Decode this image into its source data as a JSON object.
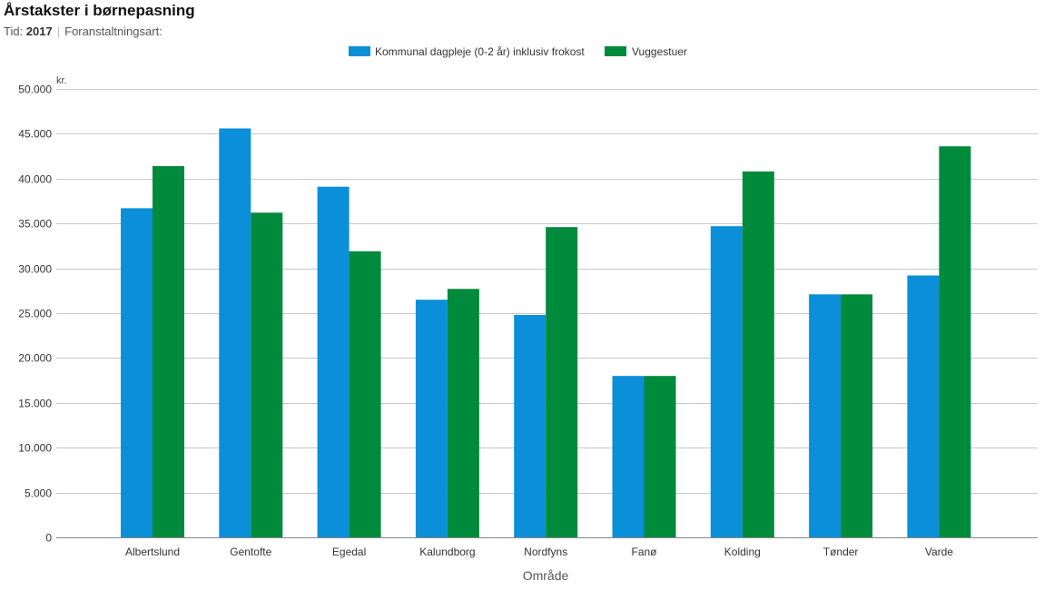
{
  "header": {
    "title": "Årstakster i børnepasning",
    "time_label": "Tid:",
    "time_value": "2017",
    "separator": "|",
    "measure_label": "Foranstaltningsart:"
  },
  "chart_data": {
    "type": "bar",
    "categories": [
      "Albertslund",
      "Gentofte",
      "Egedal",
      "Kalundborg",
      "Nordfyns",
      "Fanø",
      "Kolding",
      "Tønder",
      "Varde"
    ],
    "series": [
      {
        "name": "Kommunal dagpleje (0-2 år) inklusiv frokost",
        "color": "#0a8fd8",
        "values": [
          36700,
          45600,
          39100,
          26500,
          24800,
          18000,
          34700,
          27100,
          29200
        ]
      },
      {
        "name": "Vuggestuer",
        "color": "#008a3c",
        "values": [
          41400,
          36200,
          31900,
          27700,
          34600,
          18000,
          40800,
          27100,
          43600
        ]
      }
    ],
    "yticks": [
      "0",
      "5.000",
      "10.000",
      "15.000",
      "20.000",
      "25.000",
      "30.000",
      "35.000",
      "40.000",
      "45.000",
      "50.000"
    ],
    "ylim": [
      0,
      50000
    ],
    "yunit": "kr.",
    "xlabel": "Område",
    "legend_position": "top",
    "grid": true
  }
}
